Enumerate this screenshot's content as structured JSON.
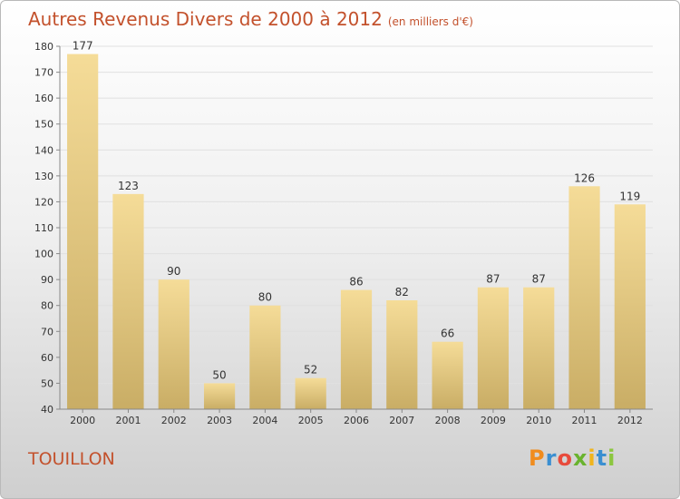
{
  "header": {
    "title": "Autres Revenus Divers de 2000 à 2012",
    "unit": "(en milliers d'€)"
  },
  "footer": {
    "commune": "TOUILLON",
    "brand": [
      "P",
      "r",
      "o",
      "x",
      "i",
      "t",
      "i"
    ]
  },
  "colors": {
    "title": "#c3512c",
    "bar_light": "#f5dc98",
    "bar_dark": "#c9ad65",
    "grid": "#e0e0e0",
    "brand": [
      "#f08c1e",
      "#3b8fd1",
      "#e84b3c",
      "#69b32e",
      "#f0b41c",
      "#3b8fd1",
      "#8cc63f"
    ]
  },
  "chart_data": {
    "type": "bar",
    "title": "Autres Revenus Divers de 2000 à 2012",
    "subtitle": "(en milliers d'€)",
    "categories": [
      "2000",
      "2001",
      "2002",
      "2003",
      "2004",
      "2005",
      "2006",
      "2007",
      "2008",
      "2009",
      "2010",
      "2011",
      "2012"
    ],
    "values": [
      177,
      123,
      90,
      50,
      80,
      52,
      86,
      82,
      66,
      87,
      87,
      126,
      119
    ],
    "ylim": [
      40,
      180
    ],
    "yticks": [
      40,
      50,
      60,
      70,
      80,
      90,
      100,
      110,
      120,
      130,
      140,
      150,
      160,
      170,
      180
    ],
    "grid": true,
    "data_labels": true
  }
}
